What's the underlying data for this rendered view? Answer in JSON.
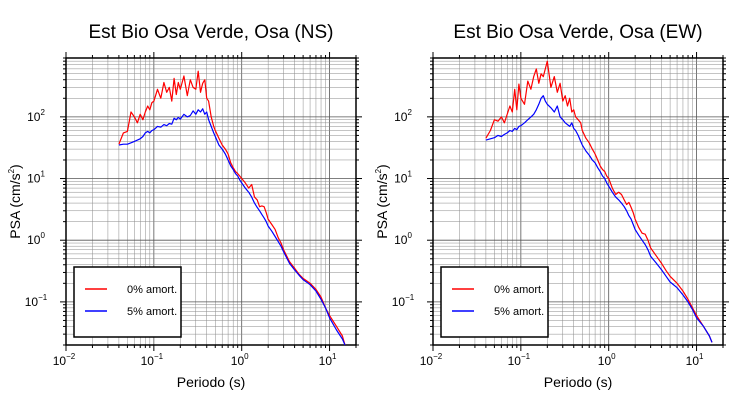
{
  "chart_data": [
    {
      "type": "line",
      "title": "Est Bio Osa Verde, Osa (NS)",
      "xlabel": "Periodo (s)",
      "ylabel": "PSA (cm/s²)",
      "ylabel_main": "PSA (cm/s",
      "ylabel_sup": "2",
      "ylabel_close": ")",
      "xscale": "log",
      "yscale": "log",
      "xlim": [
        0.01,
        20
      ],
      "ylim": [
        0.02,
        900
      ],
      "grid": true,
      "legend_position": "bottom-left",
      "x_ticks": [
        {
          "base": "10",
          "exp": "−2"
        },
        {
          "base": "10",
          "exp": "−1"
        },
        {
          "base": "10",
          "exp": "0"
        },
        {
          "base": "10",
          "exp": "1"
        }
      ],
      "y_ticks": [
        {
          "base": "10",
          "exp": "−1"
        },
        {
          "base": "10",
          "exp": "0"
        },
        {
          "base": "10",
          "exp": "1"
        },
        {
          "base": "10",
          "exp": "2"
        }
      ],
      "series": [
        {
          "name": "0% amort.",
          "color": "#ff0000",
          "x": [
            0.04,
            0.045,
            0.05,
            0.055,
            0.06,
            0.065,
            0.07,
            0.075,
            0.08,
            0.085,
            0.09,
            0.095,
            0.1,
            0.11,
            0.12,
            0.13,
            0.14,
            0.15,
            0.16,
            0.17,
            0.18,
            0.19,
            0.2,
            0.22,
            0.24,
            0.26,
            0.28,
            0.3,
            0.32,
            0.34,
            0.36,
            0.38,
            0.4,
            0.42,
            0.45,
            0.48,
            0.5,
            0.55,
            0.6,
            0.65,
            0.7,
            0.75,
            0.8,
            0.85,
            0.9,
            0.95,
            1.0,
            1.1,
            1.2,
            1.3,
            1.4,
            1.5,
            1.6,
            1.7,
            1.8,
            1.9,
            2.0,
            2.2,
            2.4,
            2.6,
            2.8,
            3.0,
            3.5,
            4.0,
            4.5,
            5.0,
            6.0,
            7.0,
            8.0,
            9.0,
            10.0,
            12.0,
            14.0,
            15.0
          ],
          "y": [
            36,
            55,
            58,
            120,
            100,
            80,
            110,
            90,
            120,
            150,
            130,
            170,
            180,
            280,
            200,
            360,
            250,
            300,
            180,
            420,
            230,
            360,
            280,
            460,
            220,
            400,
            300,
            280,
            550,
            250,
            350,
            400,
            200,
            180,
            100,
            70,
            60,
            45,
            35,
            30,
            25,
            18,
            15,
            13,
            12,
            11,
            10,
            8.5,
            7,
            8,
            5,
            4.5,
            3.5,
            3.6,
            3.5,
            2.8,
            2.2,
            1.8,
            1.5,
            1.1,
            0.9,
            0.7,
            0.45,
            0.35,
            0.28,
            0.24,
            0.2,
            0.16,
            0.12,
            0.08,
            0.06,
            0.04,
            0.028,
            0.02
          ]
        },
        {
          "name": "5% amort.",
          "color": "#0000ff",
          "x": [
            0.04,
            0.045,
            0.05,
            0.055,
            0.06,
            0.065,
            0.07,
            0.075,
            0.08,
            0.085,
            0.09,
            0.095,
            0.1,
            0.11,
            0.12,
            0.13,
            0.14,
            0.15,
            0.16,
            0.17,
            0.18,
            0.19,
            0.2,
            0.22,
            0.24,
            0.26,
            0.28,
            0.3,
            0.32,
            0.34,
            0.36,
            0.38,
            0.4,
            0.42,
            0.45,
            0.48,
            0.5,
            0.55,
            0.6,
            0.65,
            0.7,
            0.75,
            0.8,
            0.85,
            0.9,
            0.95,
            1.0,
            1.1,
            1.2,
            1.3,
            1.4,
            1.5,
            1.6,
            1.7,
            1.8,
            1.9,
            2.0,
            2.2,
            2.4,
            2.6,
            2.8,
            3.0,
            3.5,
            4.0,
            4.5,
            5.0,
            6.0,
            7.0,
            8.0,
            9.0,
            10.0,
            12.0,
            14.0,
            15.0
          ],
          "y": [
            35,
            36,
            36,
            38,
            40,
            42,
            44,
            48,
            55,
            58,
            55,
            60,
            62,
            70,
            68,
            75,
            72,
            78,
            76,
            95,
            90,
            98,
            92,
            110,
            100,
            105,
            125,
            110,
            130,
            120,
            135,
            110,
            120,
            90,
            70,
            55,
            48,
            35,
            30,
            25,
            20,
            16,
            14,
            12,
            11,
            9.5,
            8.5,
            7,
            6,
            5,
            4,
            3.4,
            3,
            2.6,
            2.3,
            2,
            1.7,
            1.4,
            1.15,
            0.95,
            0.8,
            0.65,
            0.42,
            0.33,
            0.27,
            0.23,
            0.19,
            0.15,
            0.11,
            0.08,
            0.055,
            0.035,
            0.025,
            0.02
          ]
        }
      ]
    },
    {
      "type": "line",
      "title": "Est Bio Osa Verde, Osa (EW)",
      "xlabel": "Periodo (s)",
      "ylabel": "PSA (cm/s²)",
      "ylabel_main": "PSA (cm/s",
      "ylabel_sup": "2",
      "ylabel_close": ")",
      "xscale": "log",
      "yscale": "log",
      "xlim": [
        0.01,
        20
      ],
      "ylim": [
        0.02,
        900
      ],
      "grid": true,
      "legend_position": "bottom-left",
      "x_ticks": [
        {
          "base": "10",
          "exp": "−2"
        },
        {
          "base": "10",
          "exp": "−1"
        },
        {
          "base": "10",
          "exp": "0"
        },
        {
          "base": "10",
          "exp": "1"
        }
      ],
      "y_ticks": [
        {
          "base": "10",
          "exp": "−1"
        },
        {
          "base": "10",
          "exp": "0"
        },
        {
          "base": "10",
          "exp": "1"
        },
        {
          "base": "10",
          "exp": "2"
        }
      ],
      "series": [
        {
          "name": "0% amort.",
          "color": "#ff0000",
          "x": [
            0.04,
            0.045,
            0.05,
            0.055,
            0.06,
            0.065,
            0.07,
            0.075,
            0.08,
            0.085,
            0.09,
            0.095,
            0.1,
            0.11,
            0.12,
            0.13,
            0.14,
            0.15,
            0.16,
            0.17,
            0.18,
            0.19,
            0.2,
            0.22,
            0.24,
            0.26,
            0.28,
            0.3,
            0.32,
            0.34,
            0.36,
            0.38,
            0.4,
            0.42,
            0.45,
            0.48,
            0.5,
            0.55,
            0.6,
            0.65,
            0.7,
            0.75,
            0.8,
            0.85,
            0.9,
            0.95,
            1.0,
            1.1,
            1.2,
            1.3,
            1.4,
            1.5,
            1.6,
            1.7,
            1.8,
            1.9,
            2.0,
            2.2,
            2.4,
            2.6,
            2.8,
            3.0,
            3.5,
            4.0,
            4.5,
            5.0,
            6.0,
            7.0,
            8.0,
            9.0,
            10.0,
            12.0,
            14.0,
            15.0
          ],
          "y": [
            45,
            60,
            90,
            85,
            100,
            80,
            110,
            150,
            120,
            280,
            130,
            340,
            200,
            160,
            380,
            280,
            450,
            600,
            350,
            500,
            450,
            600,
            800,
            300,
            450,
            250,
            350,
            180,
            220,
            150,
            200,
            120,
            130,
            100,
            90,
            80,
            60,
            45,
            38,
            30,
            25,
            20,
            16,
            14,
            13,
            11,
            10,
            7,
            5.5,
            6,
            5.5,
            4.5,
            3.8,
            4.1,
            3.4,
            2.8,
            2.2,
            1.6,
            1.3,
            1.25,
            1.0,
            0.75,
            0.55,
            0.42,
            0.32,
            0.26,
            0.2,
            0.15,
            0.11,
            0.08,
            0.06,
            0.04,
            0.028,
            0.022
          ]
        },
        {
          "name": "5% amort.",
          "color": "#0000ff",
          "x": [
            0.04,
            0.045,
            0.05,
            0.055,
            0.06,
            0.065,
            0.07,
            0.075,
            0.08,
            0.085,
            0.09,
            0.095,
            0.1,
            0.11,
            0.12,
            0.13,
            0.14,
            0.15,
            0.16,
            0.17,
            0.18,
            0.19,
            0.2,
            0.22,
            0.24,
            0.26,
            0.28,
            0.3,
            0.32,
            0.34,
            0.36,
            0.38,
            0.4,
            0.42,
            0.45,
            0.48,
            0.5,
            0.55,
            0.6,
            0.65,
            0.7,
            0.75,
            0.8,
            0.85,
            0.9,
            0.95,
            1.0,
            1.1,
            1.2,
            1.3,
            1.4,
            1.5,
            1.6,
            1.7,
            1.8,
            1.9,
            2.0,
            2.2,
            2.4,
            2.6,
            2.8,
            3.0,
            3.5,
            4.0,
            4.5,
            5.0,
            6.0,
            7.0,
            8.0,
            9.0,
            10.0,
            12.0,
            14.0,
            15.0
          ],
          "y": [
            42,
            44,
            46,
            50,
            48,
            52,
            55,
            60,
            58,
            65,
            62,
            70,
            72,
            80,
            90,
            100,
            110,
            130,
            160,
            200,
            220,
            180,
            160,
            140,
            120,
            150,
            100,
            90,
            80,
            75,
            70,
            80,
            65,
            60,
            50,
            40,
            35,
            28,
            24,
            20,
            18,
            15,
            13,
            11,
            10,
            8.5,
            7.5,
            6,
            5,
            4.5,
            4,
            3.5,
            3,
            2.5,
            2.2,
            1.8,
            1.5,
            1.2,
            1.0,
            0.85,
            0.7,
            0.55,
            0.42,
            0.33,
            0.26,
            0.21,
            0.17,
            0.13,
            0.1,
            0.075,
            0.055,
            0.04,
            0.028,
            0.022
          ]
        }
      ]
    }
  ]
}
